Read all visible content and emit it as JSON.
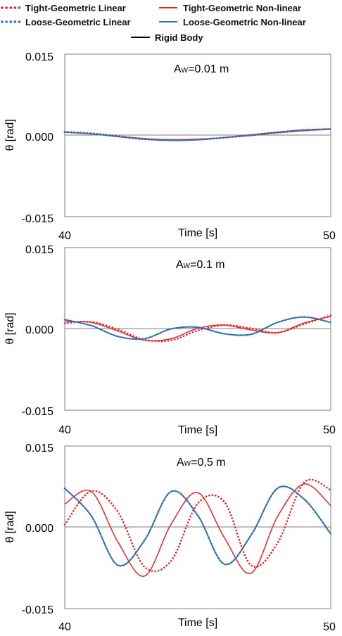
{
  "legend": {
    "tight_linear": "Tight-Geometric Linear",
    "tight_nonlinear": "Tight-Geometric Non-linear",
    "loose_linear": "Loose-Geometric Linear",
    "loose_nonlinear": "Loose-Geometric Non-linear",
    "rigid": "Rigid Body"
  },
  "colors": {
    "tight": "#e8262a",
    "loose": "#2e75b6",
    "rigid": "#000000",
    "axis": "#7f7f7f"
  },
  "panels": [
    {
      "title_main": "A",
      "title_sub": "W",
      "title_rest": "=0.01 m",
      "ylabel": "θ [rad]",
      "xlabel": "Time [s]",
      "yticks": [
        "0.015",
        "0.000",
        "-0.015"
      ],
      "xticks": [
        "40",
        "50"
      ]
    },
    {
      "title_main": "A",
      "title_sub": "W",
      "title_rest": "=0.1 m",
      "ylabel": "θ [rad]",
      "xlabel": "Time [s]",
      "yticks": [
        "0.015",
        "0.000",
        "-0.015"
      ],
      "xticks": [
        "40",
        "50"
      ]
    },
    {
      "title_main": "A",
      "title_sub": "W",
      "title_rest": "=0,5 m",
      "ylabel": "θ [rad]",
      "xlabel": "Time [s]",
      "yticks": [
        "0.015",
        "0.000",
        "-0.015"
      ],
      "xticks": [
        "40",
        "50"
      ]
    }
  ],
  "chart_data": [
    {
      "type": "line",
      "xlabel": "Time [s]",
      "ylabel": "θ [rad]",
      "xlim": [
        40,
        50
      ],
      "ylim": [
        -0.015,
        0.015
      ],
      "series": [
        {
          "name": "Tight-Geometric Linear",
          "style": "dotted",
          "x": [
            40,
            41,
            42,
            43,
            44,
            45,
            46,
            47,
            48,
            49,
            50
          ],
          "y": [
            0.0007,
            0.0004,
            -0.0001,
            -0.0006,
            -0.0008,
            -0.0007,
            -0.0004,
            0.0,
            0.0005,
            0.0009,
            0.0012
          ]
        },
        {
          "name": "Tight-Geometric Non-linear",
          "style": "solid",
          "x": [
            40,
            41,
            42,
            43,
            44,
            45,
            46,
            47,
            48,
            49,
            50
          ],
          "y": [
            0.0006,
            0.0003,
            -0.0002,
            -0.0006,
            -0.0008,
            -0.0007,
            -0.0004,
            0.0,
            0.0005,
            0.0009,
            0.0011
          ]
        },
        {
          "name": "Loose-Geometric Linear",
          "style": "dotted",
          "x": [
            40,
            41,
            42,
            43,
            44,
            45,
            46,
            47,
            48,
            49,
            50
          ],
          "y": [
            0.0006,
            0.0003,
            -0.0002,
            -0.0007,
            -0.0009,
            -0.0008,
            -0.0004,
            0.0001,
            0.0006,
            0.001,
            0.0012
          ]
        },
        {
          "name": "Loose-Geometric Non-linear",
          "style": "solid",
          "x": [
            40,
            41,
            42,
            43,
            44,
            45,
            46,
            47,
            48,
            49,
            50
          ],
          "y": [
            0.0006,
            0.0003,
            -0.0002,
            -0.0007,
            -0.0009,
            -0.0008,
            -0.0004,
            0.0001,
            0.0006,
            0.001,
            0.0012
          ]
        },
        {
          "name": "Rigid Body",
          "style": "solid",
          "x": [
            40,
            41,
            42,
            43,
            44,
            45,
            46,
            47,
            48,
            49,
            50
          ],
          "y": [
            0.0006,
            0.0003,
            -0.0002,
            -0.0007,
            -0.0009,
            -0.0008,
            -0.0004,
            0.0001,
            0.0006,
            0.001,
            0.0012
          ]
        }
      ]
    },
    {
      "type": "line",
      "xlabel": "Time [s]",
      "ylabel": "θ [rad]",
      "xlim": [
        40,
        50
      ],
      "ylim": [
        -0.015,
        0.015
      ],
      "series": [
        {
          "name": "Tight-Geometric Linear",
          "style": "dotted",
          "x": [
            40,
            41,
            42,
            43,
            44,
            45,
            46,
            47,
            48,
            49,
            50
          ],
          "y": [
            0.001,
            0.0013,
            -0.0001,
            -0.002,
            -0.0021,
            -0.0003,
            0.0007,
            0.0001,
            -0.0007,
            0.0009,
            0.0025
          ]
        },
        {
          "name": "Tight-Geometric Non-linear",
          "style": "solid",
          "x": [
            40,
            41,
            42,
            43,
            44,
            45,
            46,
            47,
            48,
            49,
            50
          ],
          "y": [
            0.0013,
            0.0012,
            -0.0004,
            -0.0021,
            -0.0018,
            0.0001,
            0.0007,
            -0.0002,
            -0.0007,
            0.0011,
            0.0023
          ]
        },
        {
          "name": "Loose-Geometric Linear",
          "style": "dotted",
          "x": [
            40,
            41,
            42,
            43,
            44,
            45,
            46,
            47,
            48,
            49,
            50
          ],
          "y": [
            0.0017,
            0.0006,
            -0.0014,
            -0.0018,
            0.0,
            0.0003,
            -0.0009,
            -0.001,
            0.0012,
            0.0022,
            0.0012
          ]
        },
        {
          "name": "Loose-Geometric Non-linear",
          "style": "solid",
          "x": [
            40,
            41,
            42,
            43,
            44,
            45,
            46,
            47,
            48,
            49,
            50
          ],
          "y": [
            0.0017,
            0.0006,
            -0.0014,
            -0.0018,
            0.0,
            0.0003,
            -0.0009,
            -0.001,
            0.0012,
            0.0022,
            0.0012
          ]
        },
        {
          "name": "Rigid Body",
          "style": "solid",
          "x": [
            40,
            41,
            42,
            43,
            44,
            45,
            46,
            47,
            48,
            49,
            50
          ],
          "y": [
            0.0017,
            0.0006,
            -0.0014,
            -0.0018,
            0.0,
            0.0003,
            -0.0009,
            -0.001,
            0.0012,
            0.0022,
            0.0012
          ]
        }
      ]
    },
    {
      "type": "line",
      "xlabel": "Time [s]",
      "ylabel": "θ [rad]",
      "xlim": [
        40,
        50
      ],
      "ylim": [
        -0.015,
        0.015
      ],
      "series": [
        {
          "name": "Tight-Geometric Linear",
          "style": "dotted",
          "x": [
            40,
            41,
            42,
            43,
            44,
            45,
            46,
            47,
            48,
            49,
            50
          ],
          "y": [
            0.0005,
            0.0067,
            0.0028,
            -0.0073,
            -0.0062,
            0.0044,
            0.0047,
            -0.007,
            -0.0029,
            0.0083,
            0.0069
          ]
        },
        {
          "name": "Tight-Geometric Non-linear",
          "style": "solid",
          "x": [
            40,
            41,
            42,
            43,
            44,
            45,
            46,
            47,
            48,
            49,
            50
          ],
          "y": [
            0.0043,
            0.0066,
            -0.0027,
            -0.009,
            0.0006,
            0.0064,
            -0.0019,
            -0.0085,
            0.002,
            0.008,
            0.004
          ]
        },
        {
          "name": "Loose-Geometric Linear",
          "style": "dotted",
          "x": [
            40,
            41,
            42,
            43,
            44,
            45,
            46,
            47,
            48,
            49,
            50
          ],
          "y": [
            0.0072,
            0.0021,
            -0.007,
            -0.0024,
            0.0066,
            0.0022,
            -0.0068,
            -0.0015,
            0.0072,
            0.0052,
            -0.0012
          ]
        },
        {
          "name": "Loose-Geometric Non-linear",
          "style": "solid",
          "x": [
            40,
            41,
            42,
            43,
            44,
            45,
            46,
            47,
            48,
            49,
            50
          ],
          "y": [
            0.0072,
            0.0021,
            -0.007,
            -0.0024,
            0.0066,
            0.0022,
            -0.0068,
            -0.0015,
            0.0072,
            0.0052,
            -0.0012
          ]
        },
        {
          "name": "Rigid Body",
          "style": "solid",
          "x": [
            40,
            41,
            42,
            43,
            44,
            45,
            46,
            47,
            48,
            49,
            50
          ],
          "y": [
            0.0072,
            0.0021,
            -0.007,
            -0.0024,
            0.0066,
            0.0022,
            -0.0068,
            -0.0015,
            0.0072,
            0.0052,
            -0.0012
          ]
        }
      ]
    }
  ]
}
